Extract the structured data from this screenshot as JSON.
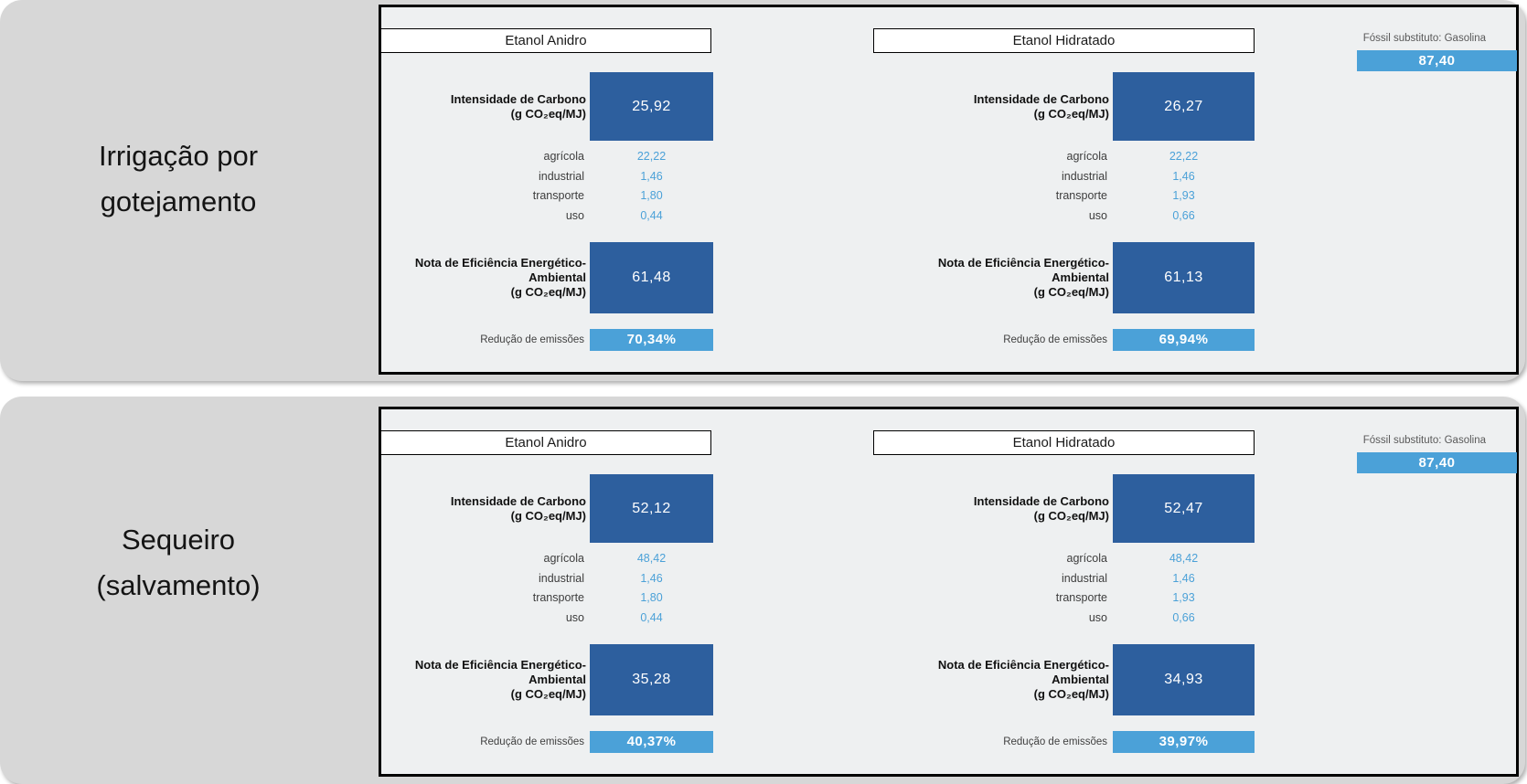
{
  "colors": {
    "dark_blue_box": "#2d5f9e",
    "light_blue_bar": "#4ba1d8",
    "panel_background": "#eef0f1",
    "card_gray": "#d7d7d7"
  },
  "scenarios": [
    {
      "label": "Irrigação por\ngotejamento",
      "fossil": {
        "label": "Fóssil substituto: Gasolina",
        "value": "87,40"
      },
      "columns": [
        {
          "title": "Etanol Anidro",
          "intensity_label": "Intensidade de Carbono\n(g CO₂eq/MJ)",
          "intensity_value": "25,92",
          "breakdown": [
            {
              "label": "agrícola",
              "value": "22,22"
            },
            {
              "label": "industrial",
              "value": "1,46"
            },
            {
              "label": "transporte",
              "value": "1,80"
            },
            {
              "label": "uso",
              "value": "0,44"
            }
          ],
          "score_label": "Nota de Eficiência Energético-Ambiental\n(g CO₂eq/MJ)",
          "score_value": "61,48",
          "reduction_label": "Redução de emissões",
          "reduction_value": "70,34%"
        },
        {
          "title": "Etanol Hidratado",
          "intensity_label": "Intensidade de Carbono\n(g CO₂eq/MJ)",
          "intensity_value": "26,27",
          "breakdown": [
            {
              "label": "agrícola",
              "value": "22,22"
            },
            {
              "label": "industrial",
              "value": "1,46"
            },
            {
              "label": "transporte",
              "value": "1,93"
            },
            {
              "label": "uso",
              "value": "0,66"
            }
          ],
          "score_label": "Nota de Eficiência Energético-\nAmbiental\n(g CO₂eq/MJ)",
          "score_value": "61,13",
          "reduction_label": "Redução de emissões",
          "reduction_value": "69,94%"
        }
      ]
    },
    {
      "label": "Sequeiro\n(salvamento)",
      "fossil": {
        "label": "Fóssil substituto: Gasolina",
        "value": "87,40"
      },
      "columns": [
        {
          "title": "Etanol Anidro",
          "intensity_label": "Intensidade de Carbono\n(g CO₂eq/MJ)",
          "intensity_value": "52,12",
          "breakdown": [
            {
              "label": "agrícola",
              "value": "48,42"
            },
            {
              "label": "industrial",
              "value": "1,46"
            },
            {
              "label": "transporte",
              "value": "1,80"
            },
            {
              "label": "uso",
              "value": "0,44"
            }
          ],
          "score_label": "Nota de Eficiência Energético-Ambiental\n(g CO₂eq/MJ)",
          "score_value": "35,28",
          "reduction_label": "Redução de emissões",
          "reduction_value": "40,37%"
        },
        {
          "title": "Etanol Hidratado",
          "intensity_label": "Intensidade de Carbono\n(g CO₂eq/MJ)",
          "intensity_value": "52,47",
          "breakdown": [
            {
              "label": "agrícola",
              "value": "48,42"
            },
            {
              "label": "industrial",
              "value": "1,46"
            },
            {
              "label": "transporte",
              "value": "1,93"
            },
            {
              "label": "uso",
              "value": "0,66"
            }
          ],
          "score_label": "Nota de Eficiência Energético-\nAmbiental\n(g CO₂eq/MJ)",
          "score_value": "34,93",
          "reduction_label": "Redução de emissões",
          "reduction_value": "39,97%"
        }
      ]
    }
  ],
  "chart_data": {
    "type": "table",
    "units": "g CO₂eq/MJ",
    "fossil_reference": {
      "label": "Fóssil substituto: Gasolina",
      "value": 87.4
    },
    "columns": [
      "scenario",
      "fuel",
      "intensidade_carbono",
      "agricola",
      "industrial",
      "transporte",
      "uso",
      "nota_eficiencia_energetico_ambiental",
      "reducao_emissoes_pct"
    ],
    "rows": [
      [
        "Irrigação por gotejamento",
        "Etanol Anidro",
        25.92,
        22.22,
        1.46,
        1.8,
        0.44,
        61.48,
        70.34
      ],
      [
        "Irrigação por gotejamento",
        "Etanol Hidratado",
        26.27,
        22.22,
        1.46,
        1.93,
        0.66,
        61.13,
        69.94
      ],
      [
        "Sequeiro (salvamento)",
        "Etanol Anidro",
        52.12,
        48.42,
        1.46,
        1.8,
        0.44,
        35.28,
        40.37
      ],
      [
        "Sequeiro (salvamento)",
        "Etanol Hidratado",
        52.47,
        48.42,
        1.46,
        1.93,
        0.66,
        34.93,
        39.97
      ]
    ]
  }
}
